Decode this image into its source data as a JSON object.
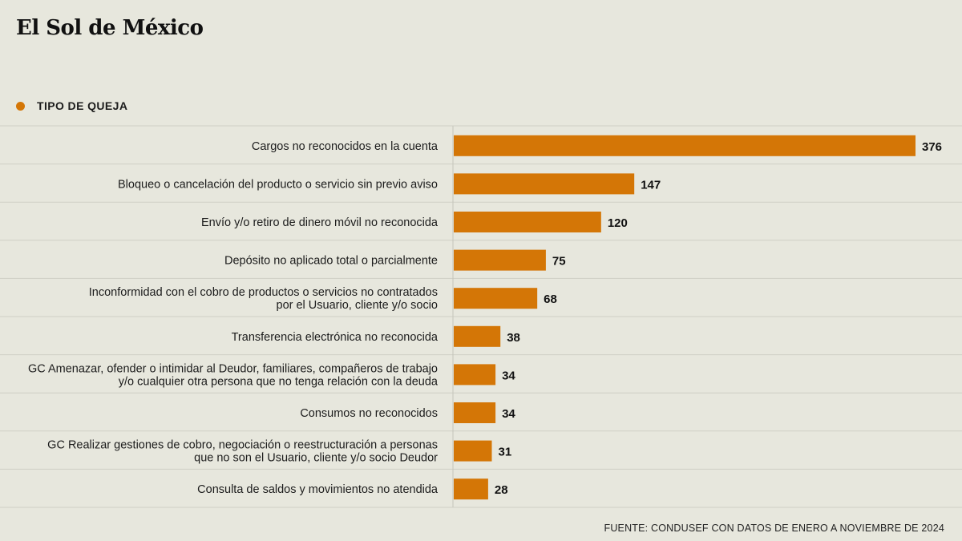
{
  "masthead": "El Sol de México",
  "legend": {
    "label": "TIPO DE QUEJA",
    "color": "#d47606"
  },
  "source": "FUENTE: CONDUSEF CON DATOS DE ENERO A NOVIEMBRE DE 2024",
  "chart_data": {
    "type": "bar",
    "orientation": "horizontal",
    "series_name": "TIPO DE QUEJA",
    "color": "#d47606",
    "categories": [
      [
        "Cargos no reconocidos en la cuenta"
      ],
      [
        "Bloqueo o cancelación del producto o servicio sin previo aviso"
      ],
      [
        "Envío y/o retiro de dinero móvil no reconocida"
      ],
      [
        "Depósito no aplicado total o parcialmente"
      ],
      [
        "Inconformidad con el cobro de productos o servicios no contratados",
        "por el Usuario, cliente y/o socio"
      ],
      [
        "Transferencia electrónica no reconocida"
      ],
      [
        "GC Amenazar, ofender o intimidar al Deudor, familiares, compañeros de trabajo",
        "y/o cualquier otra persona que no tenga relación con la deuda"
      ],
      [
        "Consumos no reconocidos"
      ],
      [
        "GC Realizar gestiones de cobro, negociación o reestructuración a personas",
        "que no son el Usuario, cliente y/o socio Deudor"
      ],
      [
        "Consulta de saldos y movimientos no atendida"
      ]
    ],
    "values": [
      376,
      147,
      120,
      75,
      68,
      38,
      34,
      34,
      31,
      28
    ],
    "xlim": [
      0,
      376
    ]
  }
}
